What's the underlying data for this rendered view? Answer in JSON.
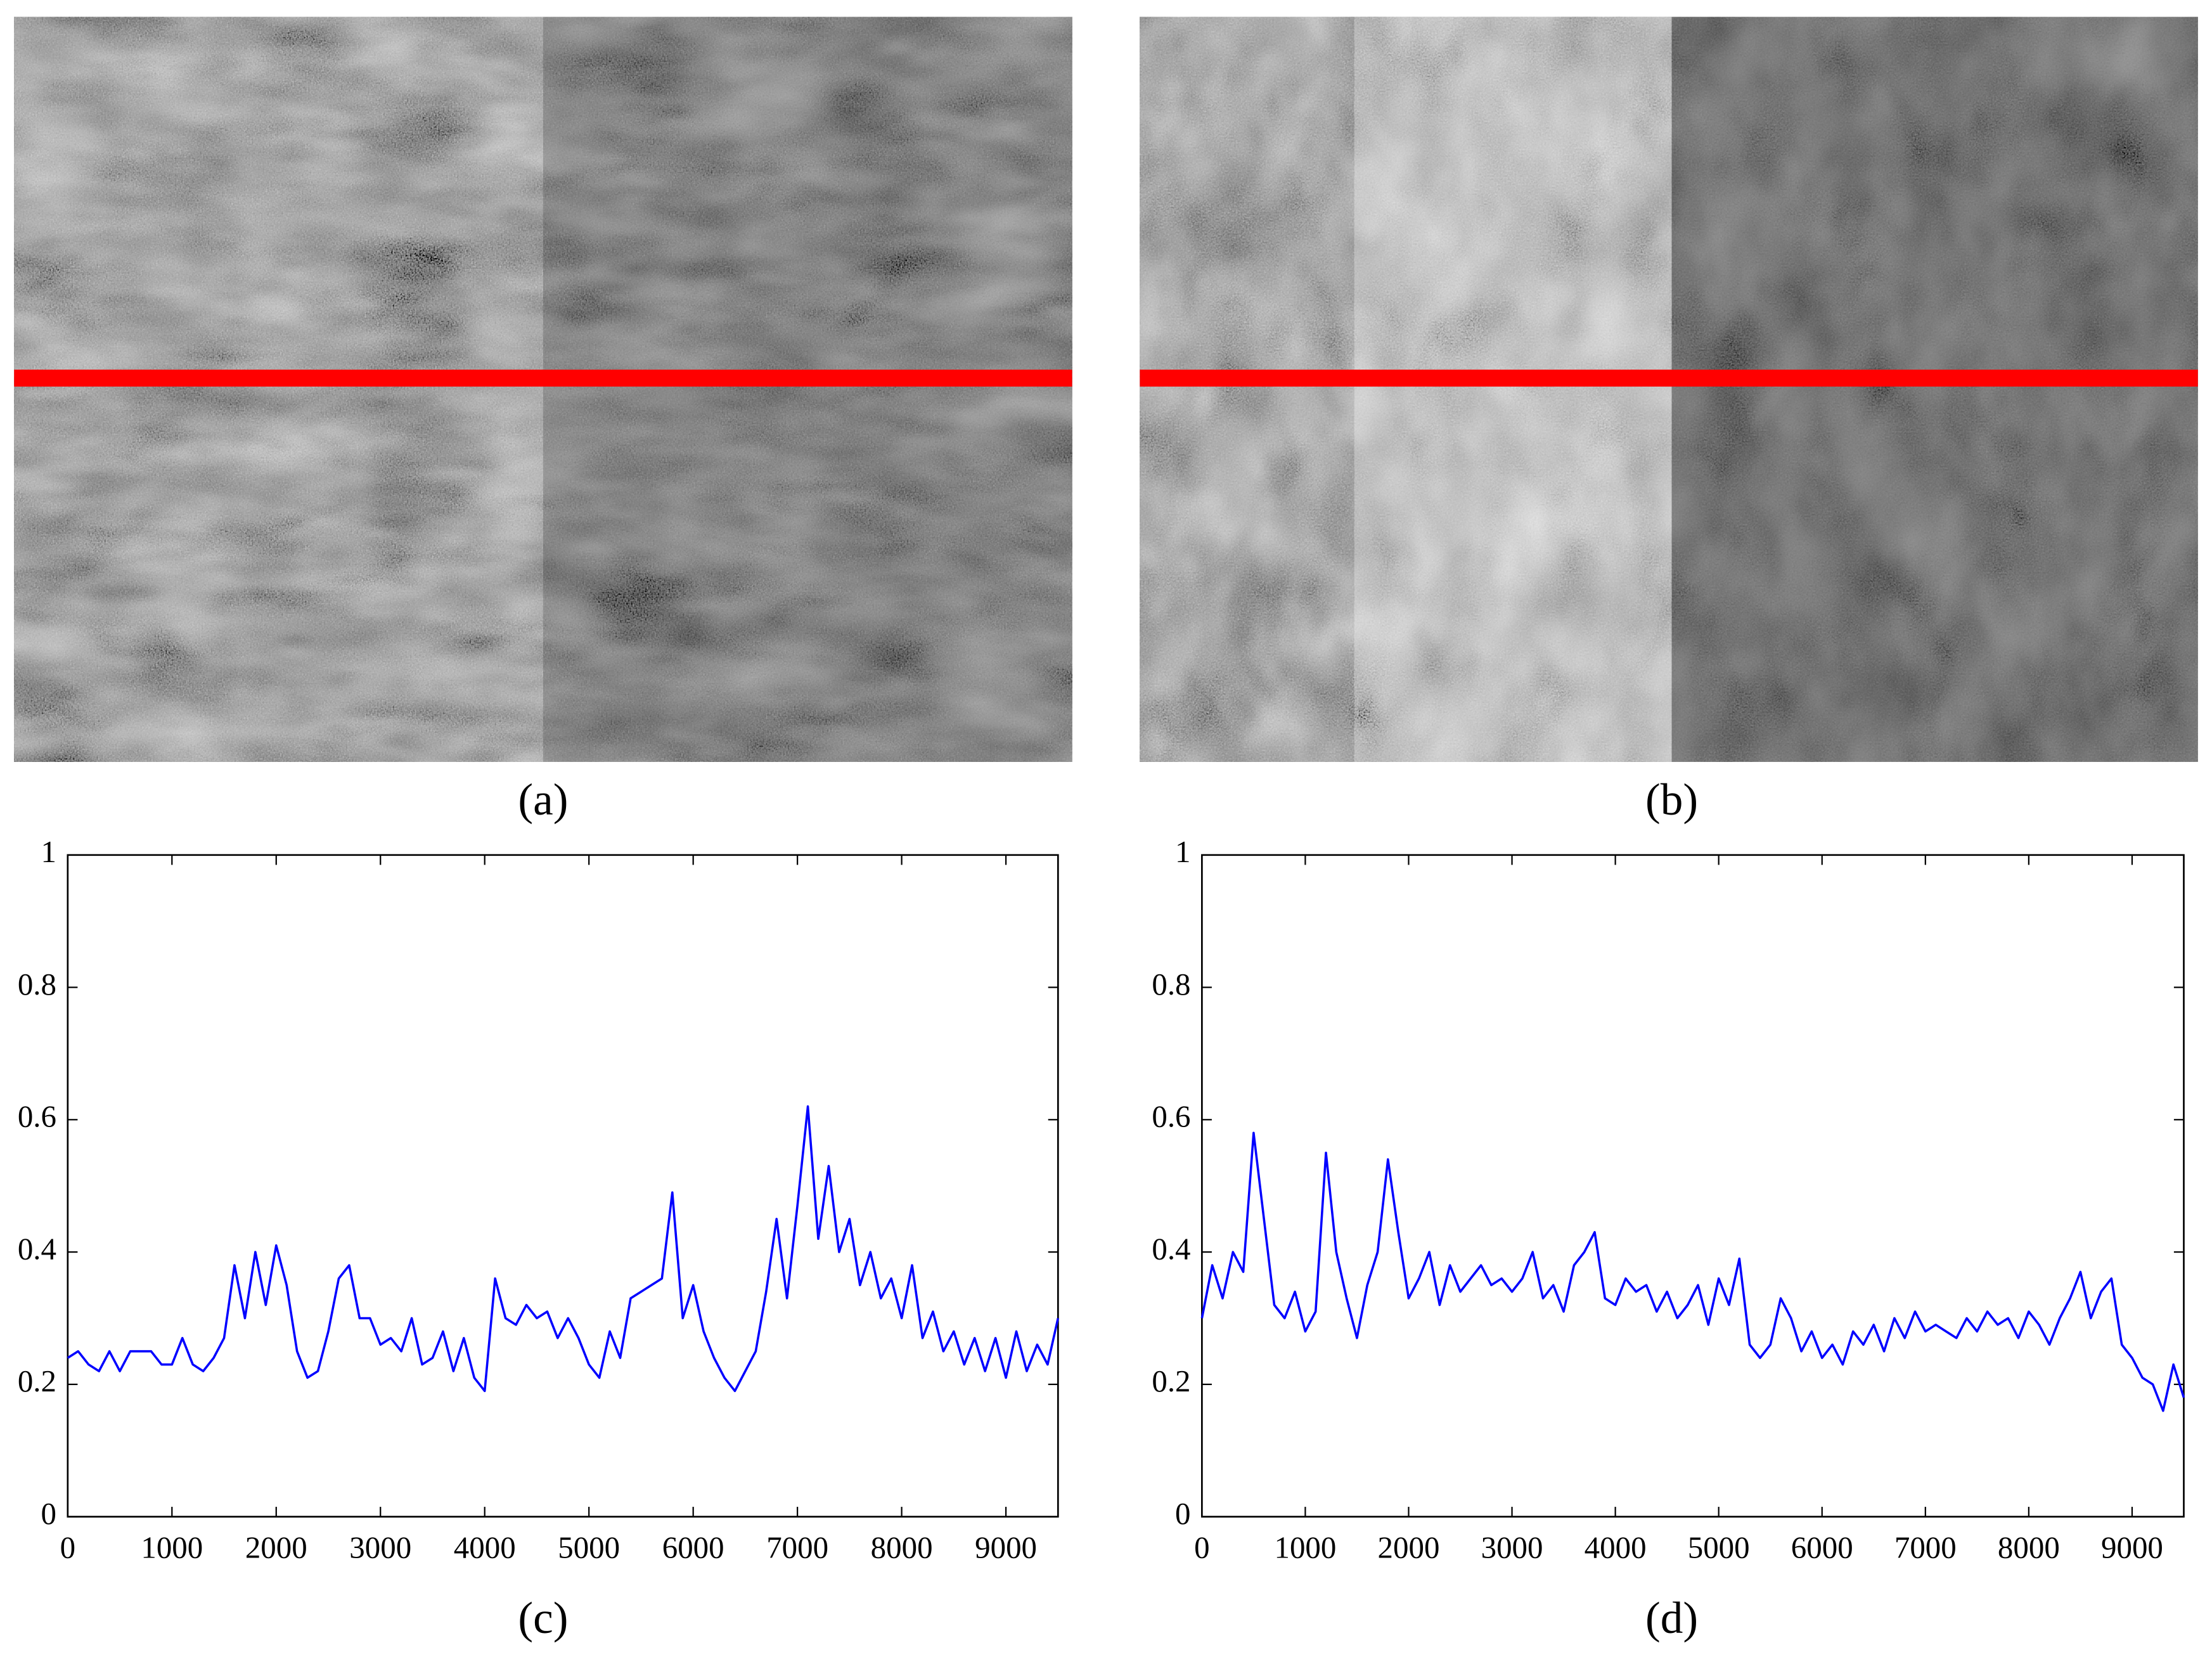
{
  "panels": [
    {
      "label": "(a)"
    },
    {
      "label": "(b)"
    }
  ],
  "chart_data": [
    {
      "type": "line",
      "caption": "(c)",
      "x": [
        0,
        100,
        200,
        300,
        400,
        500,
        600,
        700,
        800,
        900,
        1000,
        1100,
        1200,
        1300,
        1400,
        1500,
        1600,
        1700,
        1800,
        1900,
        2000,
        2100,
        2200,
        2300,
        2400,
        2500,
        2600,
        2700,
        2800,
        2900,
        3000,
        3100,
        3200,
        3300,
        3400,
        3500,
        3600,
        3700,
        3800,
        3900,
        4000,
        4100,
        4200,
        4300,
        4400,
        4500,
        4600,
        4700,
        4800,
        4900,
        5000,
        5100,
        5200,
        5300,
        5400,
        5500,
        5600,
        5700,
        5800,
        5900,
        6000,
        6100,
        6200,
        6300,
        6400,
        6500,
        6600,
        6700,
        6800,
        6900,
        7000,
        7100,
        7200,
        7300,
        7400,
        7500,
        7600,
        7700,
        7800,
        7900,
        8000,
        8100,
        8200,
        8300,
        8400,
        8500,
        8600,
        8700,
        8800,
        8900,
        9000,
        9100,
        9200,
        9300,
        9400,
        9500
      ],
      "series": [
        {
          "color": "#0000ff",
          "values": [
            0.24,
            0.25,
            0.23,
            0.22,
            0.25,
            0.22,
            0.25,
            0.25,
            0.25,
            0.23,
            0.23,
            0.27,
            0.23,
            0.22,
            0.24,
            0.27,
            0.38,
            0.3,
            0.4,
            0.32,
            0.41,
            0.35,
            0.25,
            0.21,
            0.22,
            0.28,
            0.36,
            0.38,
            0.3,
            0.3,
            0.26,
            0.27,
            0.25,
            0.3,
            0.23,
            0.24,
            0.28,
            0.22,
            0.27,
            0.21,
            0.19,
            0.36,
            0.3,
            0.29,
            0.32,
            0.3,
            0.31,
            0.27,
            0.3,
            0.27,
            0.23,
            0.21,
            0.28,
            0.24,
            0.33,
            0.34,
            0.35,
            0.36,
            0.49,
            0.3,
            0.35,
            0.28,
            0.24,
            0.21,
            0.19,
            0.22,
            0.25,
            0.34,
            0.45,
            0.33,
            0.47,
            0.62,
            0.42,
            0.53,
            0.4,
            0.45,
            0.35,
            0.4,
            0.33,
            0.36,
            0.3,
            0.38,
            0.27,
            0.31,
            0.25,
            0.28,
            0.23,
            0.27,
            0.22,
            0.27,
            0.21,
            0.28,
            0.22,
            0.26,
            0.23,
            0.3
          ]
        }
      ],
      "xlim": [
        0,
        9500
      ],
      "ylim": [
        0,
        1
      ],
      "xticks": [
        0,
        1000,
        2000,
        3000,
        4000,
        5000,
        6000,
        7000,
        8000,
        9000
      ],
      "yticks": [
        0,
        0.2,
        0.4,
        0.6,
        0.8,
        1
      ]
    },
    {
      "type": "line",
      "caption": "(d)",
      "x": [
        0,
        100,
        200,
        300,
        400,
        500,
        600,
        700,
        800,
        900,
        1000,
        1100,
        1200,
        1300,
        1400,
        1500,
        1600,
        1700,
        1800,
        1900,
        2000,
        2100,
        2200,
        2300,
        2400,
        2500,
        2600,
        2700,
        2800,
        2900,
        3000,
        3100,
        3200,
        3300,
        3400,
        3500,
        3600,
        3700,
        3800,
        3900,
        4000,
        4100,
        4200,
        4300,
        4400,
        4500,
        4600,
        4700,
        4800,
        4900,
        5000,
        5100,
        5200,
        5300,
        5400,
        5500,
        5600,
        5700,
        5800,
        5900,
        6000,
        6100,
        6200,
        6300,
        6400,
        6500,
        6600,
        6700,
        6800,
        6900,
        7000,
        7100,
        7200,
        7300,
        7400,
        7500,
        7600,
        7700,
        7800,
        7900,
        8000,
        8100,
        8200,
        8300,
        8400,
        8500,
        8600,
        8700,
        8800,
        8900,
        9000,
        9100,
        9200,
        9300,
        9400,
        9500
      ],
      "series": [
        {
          "color": "#0000ff",
          "values": [
            0.3,
            0.38,
            0.33,
            0.4,
            0.37,
            0.58,
            0.45,
            0.32,
            0.3,
            0.34,
            0.28,
            0.31,
            0.55,
            0.4,
            0.33,
            0.27,
            0.35,
            0.4,
            0.54,
            0.43,
            0.33,
            0.36,
            0.4,
            0.32,
            0.38,
            0.34,
            0.36,
            0.38,
            0.35,
            0.36,
            0.34,
            0.36,
            0.4,
            0.33,
            0.35,
            0.31,
            0.38,
            0.4,
            0.43,
            0.33,
            0.32,
            0.36,
            0.34,
            0.35,
            0.31,
            0.34,
            0.3,
            0.32,
            0.35,
            0.29,
            0.36,
            0.32,
            0.39,
            0.26,
            0.24,
            0.26,
            0.33,
            0.3,
            0.25,
            0.28,
            0.24,
            0.26,
            0.23,
            0.28,
            0.26,
            0.29,
            0.25,
            0.3,
            0.27,
            0.31,
            0.28,
            0.29,
            0.28,
            0.27,
            0.3,
            0.28,
            0.31,
            0.29,
            0.3,
            0.27,
            0.31,
            0.29,
            0.26,
            0.3,
            0.33,
            0.37,
            0.3,
            0.34,
            0.36,
            0.26,
            0.24,
            0.21,
            0.2,
            0.16,
            0.23,
            0.18
          ]
        }
      ],
      "xlim": [
        0,
        9500
      ],
      "ylim": [
        0,
        1
      ],
      "xticks": [
        0,
        1000,
        2000,
        3000,
        4000,
        5000,
        6000,
        7000,
        8000,
        9000
      ],
      "yticks": [
        0,
        0.2,
        0.4,
        0.6,
        0.8,
        1
      ]
    }
  ]
}
